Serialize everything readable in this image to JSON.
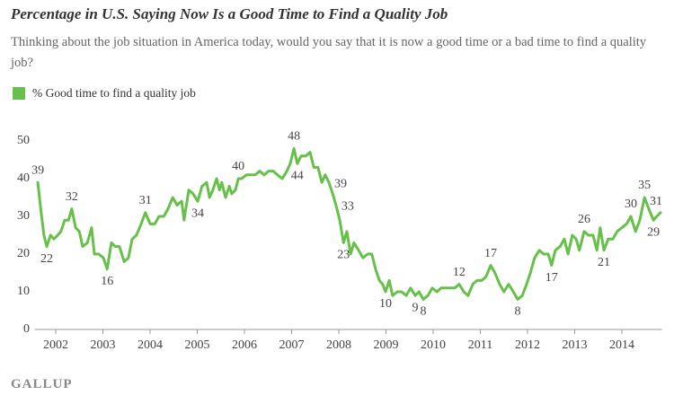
{
  "chart_data": {
    "type": "line",
    "title": "Percentage in U.S. Saying Now Is a Good Time to Find a Quality Job",
    "subtitle": "Thinking about the job situation in America today, would you say that it is now a good time or a bad time to find a quality job?",
    "source": "GALLUP",
    "xlim": [
      2001.55,
      2014.85
    ],
    "xticks": [
      2002,
      2003,
      2004,
      2005,
      2006,
      2007,
      2008,
      2009,
      2010,
      2011,
      2012,
      2013,
      2014
    ],
    "ylim": [
      0,
      50
    ],
    "yticks": [
      0,
      10,
      20,
      30,
      40,
      50
    ],
    "grid": false,
    "legend": "top-left",
    "x": [
      2001.62,
      2001.7,
      2001.75,
      2001.81,
      2001.89,
      2001.96,
      2002.04,
      2002.11,
      2002.19,
      2002.27,
      2002.34,
      2002.42,
      2002.5,
      2002.57,
      2002.67,
      2002.76,
      2002.82,
      2002.91,
      2003.01,
      2003.09,
      2003.18,
      2003.26,
      2003.35,
      2003.45,
      2003.54,
      2003.62,
      2003.71,
      2003.81,
      2003.9,
      2004.0,
      2004.1,
      2004.19,
      2004.29,
      2004.38,
      2004.48,
      2004.57,
      2004.67,
      2004.72,
      2004.82,
      2004.91,
      2005.01,
      2005.1,
      2005.2,
      2005.26,
      2005.33,
      2005.41,
      2005.47,
      2005.52,
      2005.6,
      2005.68,
      2005.73,
      2005.81,
      2005.87,
      2005.94,
      2006.04,
      2006.13,
      2006.23,
      2006.32,
      2006.42,
      2006.51,
      2006.61,
      2006.7,
      2006.8,
      2006.9,
      2006.97,
      2007.05,
      2007.12,
      2007.2,
      2007.3,
      2007.39,
      2007.47,
      2007.56,
      2007.64,
      2007.71,
      2007.79,
      2007.87,
      2007.94,
      2008.02,
      2008.1,
      2008.17,
      2008.25,
      2008.32,
      2008.42,
      2008.51,
      2008.61,
      2008.7,
      2008.78,
      2008.86,
      2008.93,
      2008.99,
      2009.07,
      2009.14,
      2009.24,
      2009.33,
      2009.43,
      2009.52,
      2009.62,
      2009.7,
      2009.79,
      2009.89,
      2009.98,
      2010.08,
      2010.17,
      2010.27,
      2010.36,
      2010.46,
      2010.55,
      2010.65,
      2010.74,
      2010.84,
      2010.93,
      2011.03,
      2011.12,
      2011.22,
      2011.31,
      2011.41,
      2011.5,
      2011.6,
      2011.7,
      2011.79,
      2011.89,
      2011.98,
      2012.06,
      2012.15,
      2012.25,
      2012.34,
      2012.44,
      2012.51,
      2012.59,
      2012.69,
      2012.78,
      2012.86,
      2012.95,
      2013.03,
      2013.1,
      2013.2,
      2013.29,
      2013.39,
      2013.47,
      2013.54,
      2013.62,
      2013.71,
      2013.81,
      2013.9,
      2014.0,
      2014.1,
      2014.19,
      2014.29,
      2014.38,
      2014.48,
      2014.57,
      2014.67,
      2014.74,
      2014.82
    ],
    "series": [
      {
        "name": "% Good time to find a quality job",
        "color": "#66c04a",
        "values": [
          39,
          30,
          25,
          22,
          25,
          24,
          25,
          26,
          29,
          29,
          32,
          27,
          26,
          22,
          23,
          27,
          20,
          20,
          19,
          16,
          23,
          22,
          22,
          18,
          19,
          24,
          25,
          28,
          31,
          28,
          28,
          30,
          30,
          32,
          35,
          33,
          34,
          29,
          37,
          36,
          34,
          38,
          39,
          35,
          37,
          40,
          37,
          39,
          35,
          38,
          36,
          37,
          40,
          40,
          41,
          41,
          41,
          42,
          41,
          42,
          42,
          41,
          40,
          42,
          44,
          48,
          44,
          46,
          46,
          47,
          43,
          43,
          39,
          41,
          39,
          36,
          33,
          29,
          23,
          26,
          20,
          23,
          21,
          19,
          20,
          20,
          16,
          13,
          12,
          10,
          13,
          9,
          10,
          10,
          9,
          11,
          9,
          10,
          8,
          9,
          11,
          10,
          11,
          11,
          11,
          11,
          12,
          10,
          9,
          12,
          13,
          13,
          14,
          17,
          15,
          12,
          10,
          12,
          10,
          8,
          9,
          12,
          15,
          19,
          21,
          20,
          20,
          17,
          21,
          22,
          24,
          20,
          25,
          24,
          21,
          26,
          25,
          25,
          21,
          27,
          21,
          24,
          24,
          26,
          27,
          28,
          30,
          26,
          29,
          35,
          32,
          29,
          30,
          31
        ],
        "value_labels": [
          "39",
          null,
          null,
          "22",
          null,
          null,
          null,
          null,
          null,
          null,
          "32",
          null,
          null,
          null,
          null,
          null,
          null,
          null,
          null,
          "16",
          null,
          null,
          null,
          null,
          null,
          null,
          null,
          null,
          "31",
          null,
          null,
          null,
          null,
          null,
          null,
          null,
          null,
          null,
          null,
          null,
          "34",
          null,
          null,
          null,
          null,
          null,
          null,
          null,
          null,
          null,
          null,
          null,
          "40",
          null,
          null,
          null,
          null,
          null,
          null,
          null,
          null,
          null,
          null,
          null,
          null,
          "48",
          "44",
          null,
          null,
          null,
          null,
          null,
          null,
          null,
          "39",
          null,
          "33",
          null,
          "23",
          null,
          null,
          null,
          null,
          null,
          null,
          null,
          null,
          null,
          null,
          "10",
          null,
          null,
          null,
          null,
          null,
          null,
          "9",
          null,
          "8",
          null,
          null,
          null,
          null,
          null,
          null,
          null,
          "12",
          null,
          null,
          null,
          null,
          null,
          null,
          "17",
          null,
          null,
          null,
          null,
          null,
          "8",
          null,
          null,
          null,
          null,
          null,
          null,
          null,
          "17",
          null,
          null,
          null,
          null,
          null,
          null,
          null,
          "26",
          null,
          null,
          null,
          null,
          "21",
          null,
          null,
          null,
          null,
          null,
          "30",
          null,
          null,
          "35",
          null,
          "29",
          null,
          "31"
        ]
      }
    ]
  }
}
